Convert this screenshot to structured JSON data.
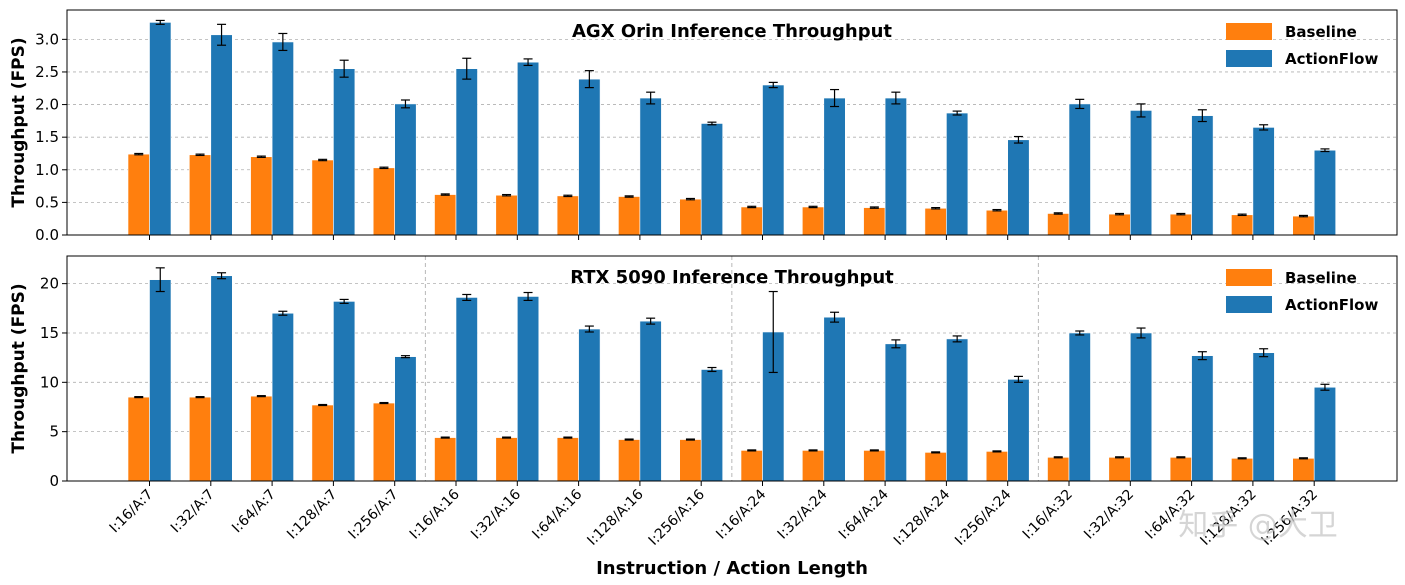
{
  "chart_data": [
    {
      "type": "bar",
      "title": "AGX Orin Inference Throughput",
      "ylabel": "Throughput (FPS)",
      "xlabel": "",
      "ylim": [
        0,
        3.45
      ],
      "yticks": [
        0.0,
        0.5,
        1.0,
        1.5,
        2.0,
        2.5,
        3.0
      ],
      "ytick_labels": [
        "0.0",
        "0.5",
        "1.0",
        "1.5",
        "2.0",
        "2.5",
        "3.0"
      ],
      "grid": "y-dashed",
      "group_separators": false,
      "legend_position": "top-right",
      "categories": [
        "I:16/A:7",
        "I:32/A:7",
        "I:64/A:7",
        "I:128/A:7",
        "I:256/A:7",
        "I:16/A:16",
        "I:32/A:16",
        "I:64/A:16",
        "I:128/A:16",
        "I:256/A:16",
        "I:16/A:24",
        "I:32/A:24",
        "I:64/A:24",
        "I:128/A:24",
        "I:256/A:24",
        "I:16/A:32",
        "I:32/A:32",
        "I:64/A:32",
        "I:128/A:32",
        "I:256/A:32"
      ],
      "series": [
        {
          "name": "Baseline",
          "color": "#ff7f0e",
          "values": [
            1.24,
            1.23,
            1.2,
            1.15,
            1.03,
            0.62,
            0.61,
            0.6,
            0.59,
            0.55,
            0.43,
            0.43,
            0.42,
            0.41,
            0.38,
            0.33,
            0.32,
            0.32,
            0.31,
            0.29
          ],
          "errors": [
            0.01,
            0.01,
            0.01,
            0.01,
            0.01,
            0.01,
            0.01,
            0.01,
            0.01,
            0.01,
            0.01,
            0.01,
            0.01,
            0.01,
            0.01,
            0.01,
            0.01,
            0.01,
            0.01,
            0.01
          ]
        },
        {
          "name": "ActionFlow",
          "color": "#1f77b4",
          "values": [
            3.26,
            3.07,
            2.96,
            2.55,
            2.01,
            2.55,
            2.65,
            2.39,
            2.1,
            1.71,
            2.3,
            2.1,
            2.1,
            1.87,
            1.46,
            2.01,
            1.91,
            1.83,
            1.65,
            1.3
          ],
          "errors": [
            0.03,
            0.16,
            0.13,
            0.13,
            0.06,
            0.16,
            0.05,
            0.13,
            0.09,
            0.02,
            0.04,
            0.13,
            0.09,
            0.03,
            0.05,
            0.07,
            0.1,
            0.09,
            0.04,
            0.02
          ]
        }
      ]
    },
    {
      "type": "bar",
      "title": "RTX 5090 Inference Throughput",
      "ylabel": "Throughput (FPS)",
      "xlabel": "Instruction / Action Length",
      "ylim": [
        0,
        22.8
      ],
      "yticks": [
        0,
        5,
        10,
        15,
        20
      ],
      "ytick_labels": [
        "0",
        "5",
        "10",
        "15",
        "20"
      ],
      "grid": "y-dashed",
      "group_separators": true,
      "legend_position": "top-right",
      "categories": [
        "I:16/A:7",
        "I:32/A:7",
        "I:64/A:7",
        "I:128/A:7",
        "I:256/A:7",
        "I:16/A:16",
        "I:32/A:16",
        "I:64/A:16",
        "I:128/A:16",
        "I:256/A:16",
        "I:16/A:24",
        "I:32/A:24",
        "I:64/A:24",
        "I:128/A:24",
        "I:256/A:24",
        "I:16/A:32",
        "I:32/A:32",
        "I:64/A:32",
        "I:128/A:32",
        "I:256/A:32"
      ],
      "series": [
        {
          "name": "Baseline",
          "color": "#ff7f0e",
          "values": [
            8.5,
            8.5,
            8.6,
            7.7,
            7.9,
            4.4,
            4.4,
            4.4,
            4.2,
            4.2,
            3.1,
            3.1,
            3.1,
            2.9,
            3.0,
            2.4,
            2.4,
            2.4,
            2.3,
            2.3
          ],
          "errors": [
            0.05,
            0.05,
            0.05,
            0.05,
            0.05,
            0.05,
            0.05,
            0.05,
            0.05,
            0.05,
            0.05,
            0.05,
            0.05,
            0.05,
            0.05,
            0.05,
            0.05,
            0.05,
            0.05,
            0.05
          ]
        },
        {
          "name": "ActionFlow",
          "color": "#1f77b4",
          "values": [
            20.4,
            20.8,
            17.0,
            18.2,
            12.6,
            18.6,
            18.7,
            15.4,
            16.2,
            11.3,
            15.1,
            16.6,
            13.9,
            14.4,
            10.3,
            15.0,
            15.0,
            12.7,
            13.0,
            9.5
          ],
          "errors": [
            1.2,
            0.3,
            0.2,
            0.2,
            0.1,
            0.3,
            0.4,
            0.3,
            0.3,
            0.2,
            4.1,
            0.5,
            0.4,
            0.3,
            0.3,
            0.2,
            0.5,
            0.4,
            0.4,
            0.3
          ]
        }
      ]
    }
  ],
  "watermark": "知乎 @大卫"
}
